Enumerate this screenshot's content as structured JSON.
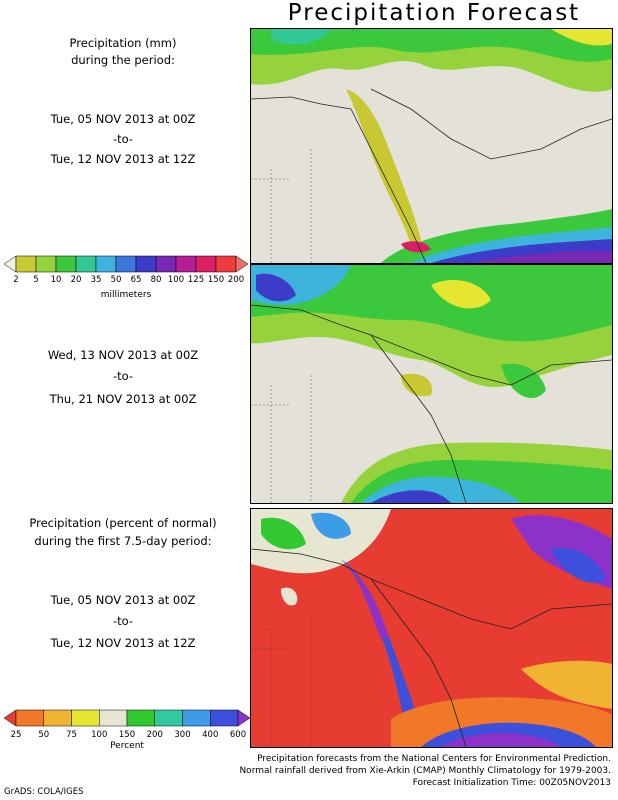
{
  "title": "Precipitation Forecast",
  "panel1": {
    "heading_line1": "Precipitation (mm)",
    "heading_line2": "during the period:",
    "start": "Tue, 05 NOV 2013 at 00Z",
    "to": "-to-",
    "end": "Tue, 12 NOV 2013 at 12Z"
  },
  "panel2": {
    "start": "Wed, 13 NOV 2013 at 00Z",
    "to": "-to-",
    "end": "Thu, 21 NOV 2013 at 00Z"
  },
  "panel3": {
    "heading_line1": "Precipitation (percent of normal)",
    "heading_line2": "during the first 7.5-day period:",
    "start": "Tue, 05 NOV 2013 at 00Z",
    "to": "-to-",
    "end": "Tue, 12 NOV 2013 at 12Z"
  },
  "colorbar_mm": {
    "ticks": [
      "2",
      "5",
      "10",
      "20",
      "35",
      "50",
      "65",
      "80",
      "100",
      "125",
      "150",
      "200"
    ],
    "unit": "millimeters",
    "colors": [
      "#f0f0e0",
      "#c8c832",
      "#96d23c",
      "#3cc83c",
      "#32c896",
      "#3cb4dc",
      "#3c78dc",
      "#3c3cc8",
      "#7828b4",
      "#b41e96",
      "#dc1e64",
      "#f03c3c",
      "#f06e6e"
    ]
  },
  "colorbar_pct": {
    "ticks": [
      "25",
      "50",
      "75",
      "100",
      "150",
      "200",
      "300",
      "400",
      "600"
    ],
    "unit": "Percent",
    "colors": [
      "#e63c32",
      "#f07828",
      "#f0b432",
      "#e6e632",
      "#e6e6d2",
      "#32c832",
      "#32c8a0",
      "#3c9ce6",
      "#3c50dc",
      "#8c32c8"
    ]
  },
  "footer": {
    "line1": "Precipitation forecasts from the National Centers for Environmental Prediction.",
    "line2": "Normal rainfall derived from Xie-Arkin (CMAP) Monthly Climatology for 1979-2003.",
    "line3": "Forecast Initialization Time: 00Z05NOV2013",
    "credit": "GrADS: COLA/IGES"
  }
}
